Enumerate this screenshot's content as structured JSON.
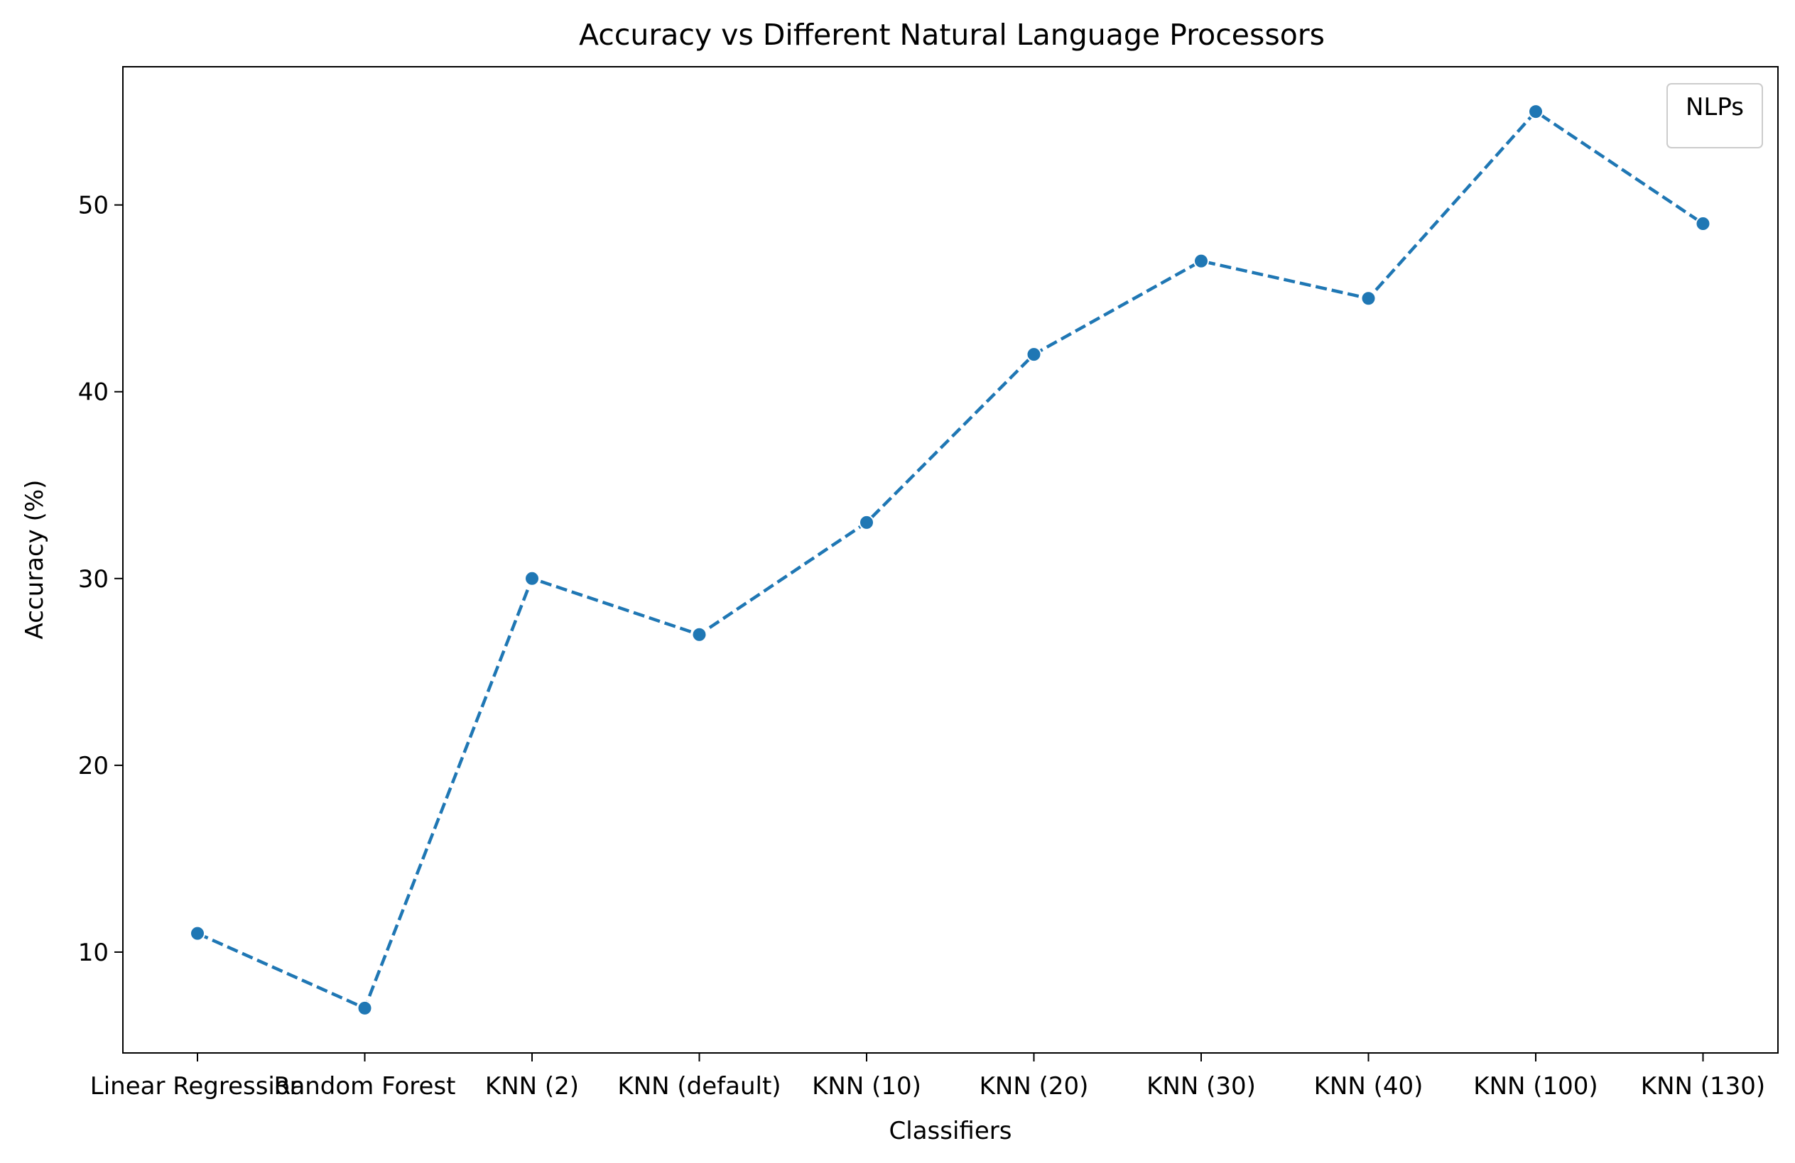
{
  "chart_data": {
    "type": "line",
    "title": "Accuracy vs Different Natural Language Processors",
    "xlabel": "Classifiers",
    "ylabel": "Accuracy (%)",
    "categories": [
      "Linear Regression",
      "Random Forest",
      "KNN (2)",
      "KNN (default)",
      "KNN (10)",
      "KNN (20)",
      "KNN (30)",
      "KNN (40)",
      "KNN (100)",
      "KNN (130)"
    ],
    "series": [
      {
        "values": [
          11,
          7,
          30,
          27,
          33,
          42,
          47,
          45,
          55,
          49
        ],
        "color": "#1f77b4",
        "line_style": "dashed",
        "marker": "circle"
      }
    ],
    "yticks": [
      10,
      20,
      30,
      40,
      50
    ],
    "ylim": [
      4.6,
      57.4
    ],
    "grid": false,
    "legend": {
      "title": "NLPs",
      "placement": "top-right",
      "entries": []
    }
  }
}
